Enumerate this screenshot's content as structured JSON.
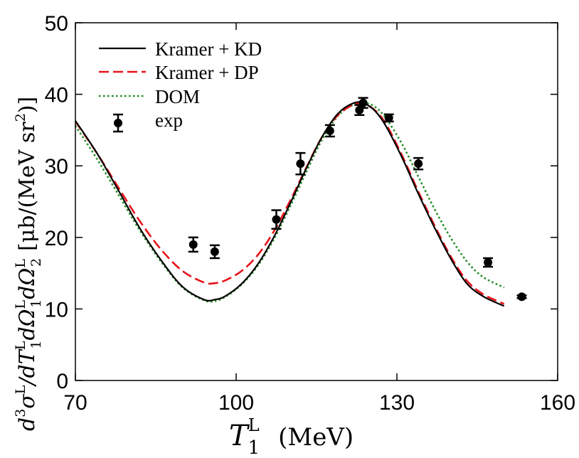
{
  "chart_data": {
    "type": "line",
    "xlabel": "T",
    "xlabel_sup": "L",
    "xlabel_sub": "1",
    "xlabel_unit": "(MeV)",
    "ylabel_parts": {
      "d": "d",
      "exp3": "3",
      "sigma": "σ",
      "supL": "L",
      "rest": "/dT",
      "sub1": "1",
      "dOmega": "dΩ",
      "sub2": "2",
      "unit": "[μb/(MeV sr",
      "unit_exp": "2",
      "unit_end": ")]"
    },
    "xlim": [
      70,
      160
    ],
    "ylim": [
      0,
      50
    ],
    "xticks": [
      70,
      100,
      130,
      160
    ],
    "yticks": [
      0,
      10,
      20,
      30,
      40,
      50
    ],
    "grid": false,
    "legend_placement": "top-left",
    "series": [
      {
        "name": "Kramer + KD",
        "style": "solid",
        "color": "#000000",
        "x": [
          70,
          74,
          78,
          82,
          86,
          90,
          94,
          96,
          98,
          101,
          104,
          107,
          110,
          113,
          116,
          119,
          122,
          124,
          126,
          128,
          131,
          134,
          137,
          140,
          143,
          146,
          150
        ],
        "y": [
          36.3,
          31.8,
          26.6,
          21.3,
          16.8,
          13.1,
          11.3,
          11.3,
          11.8,
          13.5,
          16.2,
          20.0,
          24.6,
          29.5,
          34.0,
          37.3,
          38.8,
          38.7,
          37.6,
          35.5,
          31.1,
          26.1,
          21.4,
          17.1,
          13.6,
          11.8,
          10.4
        ]
      },
      {
        "name": "Kramer + DP",
        "style": "dashed",
        "color": "#e8141b",
        "x": [
          70,
          74,
          78,
          82,
          86,
          90,
          94,
          96,
          98,
          101,
          104,
          107,
          110,
          113,
          116,
          119,
          122,
          124,
          126,
          128,
          131,
          134,
          137,
          140,
          143,
          146,
          150
        ],
        "y": [
          36.2,
          31.8,
          27.0,
          22.3,
          18.3,
          15.3,
          13.7,
          13.6,
          14.0,
          15.3,
          17.5,
          20.8,
          25.0,
          29.6,
          34.0,
          37.1,
          38.6,
          38.6,
          37.7,
          35.8,
          31.4,
          26.4,
          21.7,
          17.4,
          14.0,
          12.1,
          10.7
        ]
      },
      {
        "name": "DOM",
        "style": "dotted",
        "color": "#1e8c1e",
        "x": [
          70,
          74,
          78,
          82,
          86,
          90,
          94,
          96,
          98,
          101,
          104,
          107,
          110,
          113,
          116,
          119,
          122,
          124,
          126,
          128,
          131,
          134,
          137,
          140,
          143,
          146,
          150
        ],
        "y": [
          35.6,
          31.0,
          26.0,
          21.0,
          16.6,
          13.0,
          11.2,
          11.1,
          11.7,
          13.4,
          16.0,
          19.7,
          24.2,
          29.0,
          33.6,
          37.0,
          38.6,
          38.8,
          38.2,
          36.6,
          33.0,
          28.5,
          24.0,
          20.0,
          16.7,
          14.5,
          13.0
        ]
      }
    ],
    "exp": {
      "name": "exp",
      "points": [
        {
          "x": 92.0,
          "y": 19.0,
          "yerr": 1.0
        },
        {
          "x": 96.0,
          "y": 18.0,
          "yerr": 0.9
        },
        {
          "x": 107.5,
          "y": 22.5,
          "yerr": 1.3
        },
        {
          "x": 112.0,
          "y": 30.3,
          "yerr": 1.5
        },
        {
          "x": 117.5,
          "y": 34.9,
          "yerr": 0.8
        },
        {
          "x": 123.0,
          "y": 37.8,
          "yerr": 0.7
        },
        {
          "x": 123.7,
          "y": 38.8,
          "yerr": 0.7
        },
        {
          "x": 128.5,
          "y": 36.7,
          "yerr": 0.5
        },
        {
          "x": 134.0,
          "y": 30.3,
          "yerr": 0.8
        },
        {
          "x": 147.0,
          "y": 16.5,
          "yerr": 0.6
        },
        {
          "x": 153.3,
          "y": 11.7,
          "yerr": 0.2
        }
      ]
    }
  }
}
